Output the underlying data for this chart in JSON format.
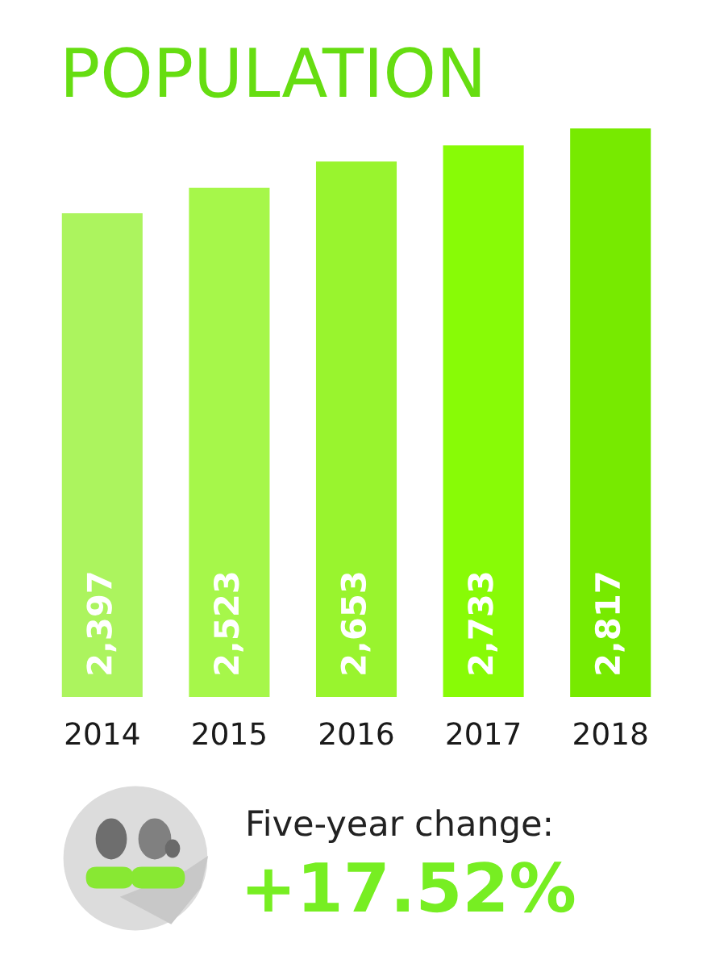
{
  "chart_data": {
    "type": "bar",
    "title": "POPULATION",
    "categories": [
      "2014",
      "2015",
      "2016",
      "2017",
      "2018"
    ],
    "values": [
      2397,
      2523,
      2653,
      2733,
      2817
    ],
    "colors": [
      "#acf45e",
      "#a6f74a",
      "#99f42e",
      "#88fb06",
      "#77ea00"
    ],
    "value_labels": [
      "2,397",
      "2,523",
      "2,653",
      "2,733",
      "2,817"
    ],
    "tick_labels": "x",
    "annotations": [
      "Five-year change:",
      "+17.52%"
    ]
  }
}
